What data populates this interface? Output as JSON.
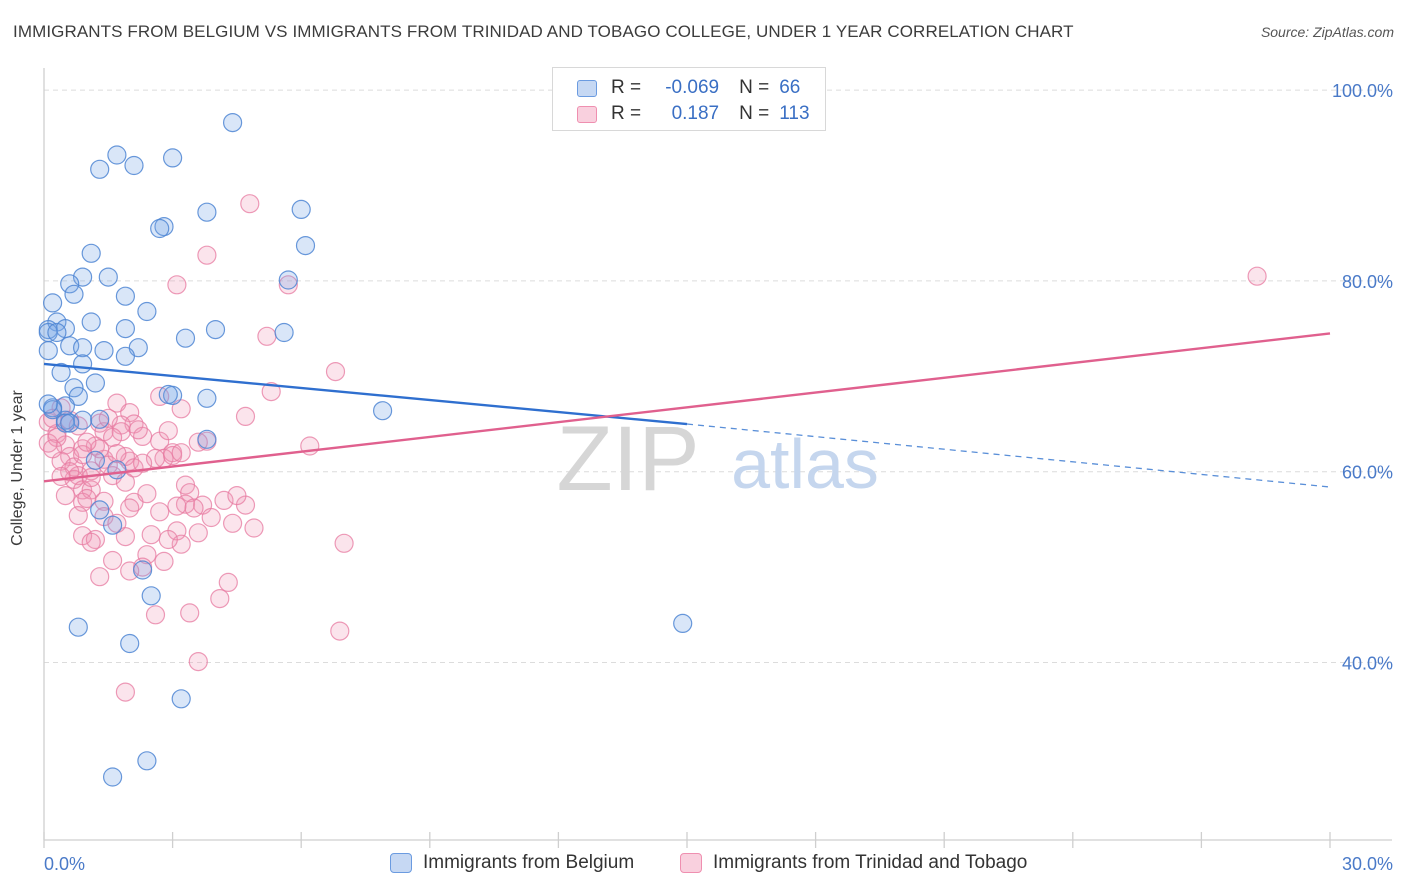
{
  "title": "IMMIGRANTS FROM BELGIUM VS IMMIGRANTS FROM TRINIDAD AND TOBAGO COLLEGE, UNDER 1 YEAR CORRELATION CHART",
  "source": "Source: ZipAtlas.com",
  "watermark": {
    "zip": "ZIP",
    "atlas": "atlas"
  },
  "legend": {
    "r_label": "R =",
    "n_label": "N =",
    "rows": [
      {
        "r": "-0.069",
        "n": "66",
        "color": "#6b9be0"
      },
      {
        "r": "0.187",
        "n": "113",
        "color": "#ef8fb0"
      }
    ]
  },
  "colors": {
    "blue": "#4f86d4",
    "pink": "#e77aa0",
    "tick_label": "#4a7ac8"
  },
  "chart_data": {
    "type": "scatter",
    "title": "IMMIGRANTS FROM BELGIUM VS IMMIGRANTS FROM TRINIDAD AND TOBAGO COLLEGE, UNDER 1 YEAR CORRELATION CHART",
    "xlabel": "",
    "ylabel": "College, Under 1 year",
    "xlim": [
      0,
      30
    ],
    "ylim": [
      21.4,
      101.9
    ],
    "x_tick_labels": [
      {
        "value": 0,
        "label": "0.0%"
      },
      {
        "value": 30,
        "label": "30.0%"
      }
    ],
    "y_tick_labels": [
      {
        "value": 100,
        "label": "100.0%"
      },
      {
        "value": 80,
        "label": "80.0%"
      },
      {
        "value": 60,
        "label": "60.0%"
      },
      {
        "value": 40,
        "label": "40.0%"
      }
    ],
    "grid": true,
    "legend_position": "bottom",
    "series": [
      {
        "name": "Immigrants from Belgium",
        "color": "#4f86d4",
        "r": -0.069,
        "n": 66,
        "trend": {
          "x0": 0,
          "y0": 71.3,
          "x1": 15.0,
          "y1": 65.0,
          "dashed_to_x": 30,
          "dashed_to_y": 58.4
        },
        "points": [
          [
            4.4,
            96.6
          ],
          [
            1.7,
            93.2
          ],
          [
            3.0,
            92.9
          ],
          [
            2.1,
            92.1
          ],
          [
            1.3,
            91.7
          ],
          [
            6.0,
            87.5
          ],
          [
            3.8,
            87.2
          ],
          [
            2.8,
            85.7
          ],
          [
            2.7,
            85.5
          ],
          [
            6.1,
            83.7
          ],
          [
            1.1,
            82.9
          ],
          [
            0.9,
            80.4
          ],
          [
            1.5,
            80.4
          ],
          [
            5.7,
            80.1
          ],
          [
            0.6,
            79.7
          ],
          [
            0.7,
            78.6
          ],
          [
            1.9,
            78.4
          ],
          [
            0.2,
            77.7
          ],
          [
            2.4,
            76.8
          ],
          [
            1.1,
            75.7
          ],
          [
            0.3,
            75.7
          ],
          [
            0.1,
            74.9
          ],
          [
            0.5,
            75.0
          ],
          [
            1.9,
            75.0
          ],
          [
            4.0,
            74.9
          ],
          [
            5.6,
            74.6
          ],
          [
            0.1,
            74.6
          ],
          [
            0.3,
            74.6
          ],
          [
            3.3,
            74.0
          ],
          [
            0.6,
            73.2
          ],
          [
            2.2,
            73.0
          ],
          [
            0.1,
            72.7
          ],
          [
            0.9,
            73.0
          ],
          [
            1.4,
            72.7
          ],
          [
            1.9,
            72.1
          ],
          [
            0.9,
            71.3
          ],
          [
            0.4,
            70.4
          ],
          [
            1.2,
            69.3
          ],
          [
            0.7,
            68.8
          ],
          [
            0.8,
            67.9
          ],
          [
            3.8,
            67.7
          ],
          [
            3.0,
            68.0
          ],
          [
            0.5,
            66.9
          ],
          [
            0.2,
            66.7
          ],
          [
            7.9,
            66.4
          ],
          [
            0.5,
            65.4
          ],
          [
            0.9,
            65.4
          ],
          [
            1.3,
            65.5
          ],
          [
            0.5,
            65.1
          ],
          [
            3.8,
            63.4
          ],
          [
            1.2,
            61.2
          ],
          [
            1.7,
            60.2
          ],
          [
            1.3,
            56.0
          ],
          [
            1.6,
            54.4
          ],
          [
            2.3,
            49.7
          ],
          [
            2.5,
            47.0
          ],
          [
            14.9,
            44.1
          ],
          [
            0.8,
            43.7
          ],
          [
            2.0,
            42.0
          ],
          [
            3.2,
            36.2
          ],
          [
            2.4,
            29.7
          ],
          [
            1.6,
            28.0
          ],
          [
            0.2,
            66.5
          ],
          [
            0.6,
            65.1
          ],
          [
            2.9,
            68.1
          ],
          [
            0.1,
            67.1
          ]
        ]
      },
      {
        "name": "Immigrants from Trinidad and Tobago",
        "color": "#e77aa0",
        "r": 0.187,
        "n": 113,
        "trend": {
          "x0": 0,
          "y0": 59.0,
          "x1": 30,
          "y1": 74.5
        },
        "points": [
          [
            28.3,
            80.5
          ],
          [
            4.8,
            88.1
          ],
          [
            3.8,
            82.7
          ],
          [
            3.1,
            79.6
          ],
          [
            5.7,
            79.6
          ],
          [
            5.2,
            74.2
          ],
          [
            6.8,
            70.5
          ],
          [
            5.3,
            68.4
          ],
          [
            2.7,
            67.9
          ],
          [
            1.7,
            67.2
          ],
          [
            2.0,
            66.2
          ],
          [
            3.2,
            66.6
          ],
          [
            4.7,
            65.8
          ],
          [
            0.4,
            66.7
          ],
          [
            0.6,
            65.4
          ],
          [
            1.3,
            65.1
          ],
          [
            2.1,
            65.0
          ],
          [
            1.8,
            64.9
          ],
          [
            1.8,
            64.2
          ],
          [
            0.1,
            65.2
          ],
          [
            0.3,
            64.0
          ],
          [
            1.4,
            64.2
          ],
          [
            2.3,
            63.7
          ],
          [
            3.8,
            63.2
          ],
          [
            2.7,
            63.2
          ],
          [
            0.1,
            63.0
          ],
          [
            0.5,
            62.8
          ],
          [
            1.2,
            62.7
          ],
          [
            0.9,
            62.4
          ],
          [
            3.0,
            62.0
          ],
          [
            2.8,
            61.4
          ],
          [
            0.6,
            61.6
          ],
          [
            1.4,
            61.3
          ],
          [
            2.0,
            61.1
          ],
          [
            1.9,
            61.6
          ],
          [
            6.2,
            62.7
          ],
          [
            0.4,
            61.1
          ],
          [
            0.7,
            60.5
          ],
          [
            1.1,
            60.1
          ],
          [
            1.6,
            59.6
          ],
          [
            0.8,
            59.6
          ],
          [
            0.7,
            59.2
          ],
          [
            3.3,
            58.6
          ],
          [
            0.9,
            58.1
          ],
          [
            1.1,
            58.1
          ],
          [
            3.4,
            57.8
          ],
          [
            0.5,
            57.5
          ],
          [
            4.2,
            57.0
          ],
          [
            1.4,
            56.9
          ],
          [
            0.9,
            56.8
          ],
          [
            2.1,
            56.8
          ],
          [
            3.3,
            56.6
          ],
          [
            4.7,
            56.5
          ],
          [
            3.7,
            56.5
          ],
          [
            2.0,
            56.2
          ],
          [
            1.4,
            55.3
          ],
          [
            4.4,
            54.6
          ],
          [
            0.8,
            55.4
          ],
          [
            3.1,
            53.8
          ],
          [
            3.6,
            53.6
          ],
          [
            0.9,
            53.3
          ],
          [
            2.5,
            53.4
          ],
          [
            1.9,
            53.2
          ],
          [
            1.2,
            52.9
          ],
          [
            3.2,
            52.4
          ],
          [
            1.1,
            52.6
          ],
          [
            7.0,
            52.5
          ],
          [
            2.4,
            51.3
          ],
          [
            2.8,
            50.6
          ],
          [
            1.6,
            50.7
          ],
          [
            2.3,
            50.0
          ],
          [
            2.0,
            49.6
          ],
          [
            1.3,
            49.0
          ],
          [
            4.3,
            48.4
          ],
          [
            4.1,
            46.7
          ],
          [
            2.6,
            45.0
          ],
          [
            3.4,
            45.2
          ],
          [
            6.9,
            43.3
          ],
          [
            3.6,
            40.1
          ],
          [
            1.9,
            36.9
          ],
          [
            1.5,
            65.6
          ],
          [
            2.2,
            64.4
          ],
          [
            1.6,
            63.6
          ],
          [
            1.3,
            62.4
          ],
          [
            0.9,
            61.8
          ],
          [
            2.1,
            60.4
          ],
          [
            2.6,
            61.4
          ],
          [
            3.0,
            61.7
          ],
          [
            0.3,
            63.6
          ],
          [
            1.0,
            63.1
          ],
          [
            0.2,
            65.6
          ],
          [
            4.5,
            57.5
          ],
          [
            3.5,
            56.2
          ],
          [
            2.7,
            55.8
          ],
          [
            1.7,
            54.6
          ],
          [
            2.9,
            52.9
          ],
          [
            1.5,
            60.7
          ],
          [
            0.6,
            60.0
          ],
          [
            1.9,
            58.9
          ],
          [
            2.4,
            57.7
          ],
          [
            3.9,
            55.2
          ],
          [
            4.9,
            54.1
          ],
          [
            0.4,
            59.5
          ],
          [
            1.1,
            59.4
          ],
          [
            2.9,
            64.3
          ],
          [
            3.2,
            62.0
          ],
          [
            0.8,
            64.8
          ],
          [
            0.2,
            62.4
          ],
          [
            1.7,
            61.9
          ],
          [
            2.3,
            60.9
          ],
          [
            3.6,
            63.1
          ],
          [
            1.0,
            57.2
          ],
          [
            3.1,
            56.4
          ]
        ]
      }
    ]
  },
  "bottom_legend": [
    {
      "label": "Immigrants from Belgium",
      "color": "#6b9be0"
    },
    {
      "label": "Immigrants from Trinidad and Tobago",
      "color": "#ef8fb0"
    }
  ]
}
